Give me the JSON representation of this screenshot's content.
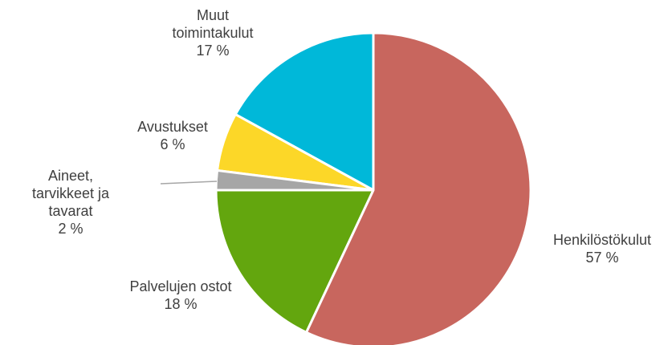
{
  "chart_data": {
    "type": "pie",
    "categories": [
      "Henkilöstökulut",
      "Palvelujen ostot",
      "Aineet, tarvikkeet ja tavarat",
      "Avustukset",
      "Muut toimintakulut"
    ],
    "values": [
      57,
      18,
      2,
      6,
      17
    ],
    "value_labels": [
      "57 %",
      "18 %",
      "2 %",
      "6 %",
      "17 %"
    ],
    "colors": [
      "#c8665e",
      "#63a60e",
      "#a6a6a6",
      "#fcd728",
      "#00b8d9"
    ]
  }
}
